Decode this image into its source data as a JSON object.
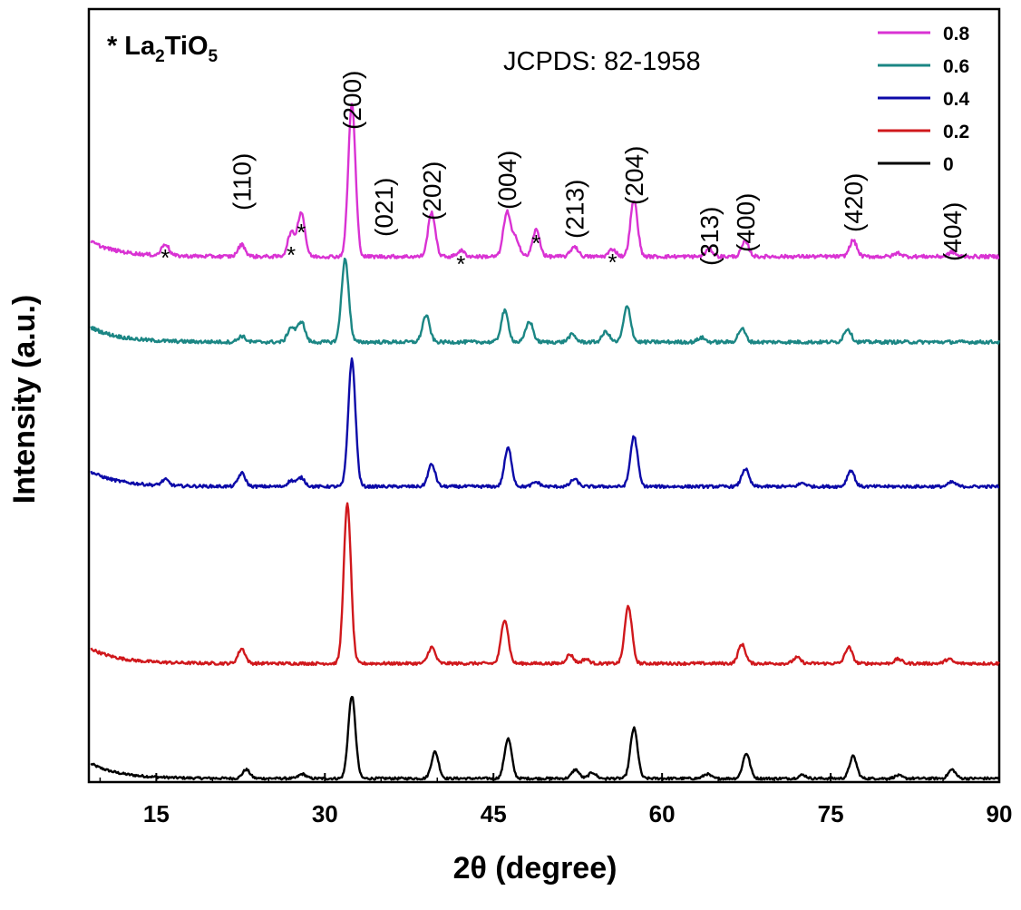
{
  "chart_data": {
    "type": "line",
    "title": "",
    "xlabel": "2θ (degree)",
    "ylabel": "Intensity (a.u.)",
    "xlim": [
      9,
      90
    ],
    "xticks": [
      15,
      30,
      45,
      60,
      75,
      90
    ],
    "yticks": [],
    "grid": false,
    "legend_position": "top-right",
    "legend_order": [
      "0.8",
      "0.6",
      "0.4",
      "0.2",
      "0"
    ],
    "phase_marker": {
      "symbol": "*",
      "phase_prefix": "La",
      "sub1": "2",
      "phase_mid": "TiO",
      "sub2": "5"
    },
    "reference_text": "JCPDS: 82-1958",
    "hkl_labels": [
      {
        "text": "(110)",
        "x": 22.6
      },
      {
        "text": "(200)",
        "x": 32.4
      },
      {
        "text": "(021)",
        "x": 35.2
      },
      {
        "text": "(202)",
        "x": 39.5
      },
      {
        "text": "(004)",
        "x": 46.2
      },
      {
        "text": "(213)",
        "x": 52.2
      },
      {
        "text": "(204)",
        "x": 57.5
      },
      {
        "text": "(313)",
        "x": 64.2
      },
      {
        "text": "(400)",
        "x": 67.4
      },
      {
        "text": "(420)",
        "x": 77.0
      },
      {
        "text": "(404)",
        "x": 85.8
      }
    ],
    "impurity_peaks": [
      15.8,
      27.0,
      27.9,
      42.1,
      48.8,
      55.6
    ],
    "series": [
      {
        "name": "0",
        "color": "#000000",
        "baseline": 0.0,
        "noise": 0.04,
        "peaks": [
          [
            23.0,
            0.3
          ],
          [
            28.0,
            0.15
          ],
          [
            32.4,
            2.8
          ],
          [
            39.8,
            0.9
          ],
          [
            46.3,
            1.35
          ],
          [
            52.3,
            0.3
          ],
          [
            53.8,
            0.2
          ],
          [
            57.5,
            1.7
          ],
          [
            64.0,
            0.15
          ],
          [
            67.5,
            0.85
          ],
          [
            72.5,
            0.12
          ],
          [
            77.0,
            0.75
          ],
          [
            81.0,
            0.1
          ],
          [
            85.8,
            0.3
          ]
        ]
      },
      {
        "name": "0.2",
        "color": "#d0181c",
        "baseline": 3.9,
        "noise": 0.05,
        "peaks": [
          [
            22.6,
            0.5
          ],
          [
            32.0,
            5.4
          ],
          [
            39.5,
            0.55
          ],
          [
            46.0,
            1.5
          ],
          [
            51.8,
            0.3
          ],
          [
            53.2,
            0.15
          ],
          [
            57.0,
            1.95
          ],
          [
            67.1,
            0.65
          ],
          [
            72.0,
            0.2
          ],
          [
            76.6,
            0.55
          ],
          [
            81.0,
            0.15
          ],
          [
            85.5,
            0.15
          ]
        ]
      },
      {
        "name": "0.4",
        "color": "#0c0aa8",
        "baseline": 9.9,
        "noise": 0.05,
        "peaks": [
          [
            15.8,
            0.2
          ],
          [
            22.6,
            0.45
          ],
          [
            27.0,
            0.2
          ],
          [
            27.9,
            0.3
          ],
          [
            32.4,
            4.3
          ],
          [
            39.5,
            0.75
          ],
          [
            46.3,
            1.3
          ],
          [
            48.8,
            0.15
          ],
          [
            52.2,
            0.25
          ],
          [
            57.5,
            1.7
          ],
          [
            67.4,
            0.6
          ],
          [
            72.5,
            0.12
          ],
          [
            76.8,
            0.55
          ],
          [
            85.8,
            0.15
          ]
        ]
      },
      {
        "name": "0.6",
        "color": "#1b8684",
        "baseline": 14.8,
        "noise": 0.06,
        "peaks": [
          [
            22.6,
            0.2
          ],
          [
            27.0,
            0.5
          ],
          [
            27.9,
            0.7
          ],
          [
            31.8,
            2.8
          ],
          [
            39.0,
            0.9
          ],
          [
            46.0,
            1.05
          ],
          [
            48.2,
            0.7
          ],
          [
            52.0,
            0.25
          ],
          [
            55.0,
            0.35
          ],
          [
            56.9,
            1.2
          ],
          [
            63.5,
            0.15
          ],
          [
            67.1,
            0.45
          ],
          [
            76.5,
            0.45
          ]
        ]
      },
      {
        "name": "0.8",
        "color": "#d932d3",
        "baseline": 17.7,
        "noise": 0.06,
        "peaks": [
          [
            15.8,
            0.4
          ],
          [
            22.6,
            0.4
          ],
          [
            27.0,
            0.8
          ],
          [
            27.9,
            1.5
          ],
          [
            32.4,
            5.2
          ],
          [
            39.5,
            1.5
          ],
          [
            42.1,
            0.2
          ],
          [
            46.2,
            1.5
          ],
          [
            47.0,
            0.6
          ],
          [
            48.8,
            0.9
          ],
          [
            52.2,
            0.35
          ],
          [
            55.6,
            0.25
          ],
          [
            57.5,
            1.9
          ],
          [
            64.2,
            0.25
          ],
          [
            67.4,
            0.5
          ],
          [
            77.0,
            0.55
          ],
          [
            81.0,
            0.12
          ],
          [
            85.8,
            0.15
          ]
        ]
      }
    ]
  }
}
